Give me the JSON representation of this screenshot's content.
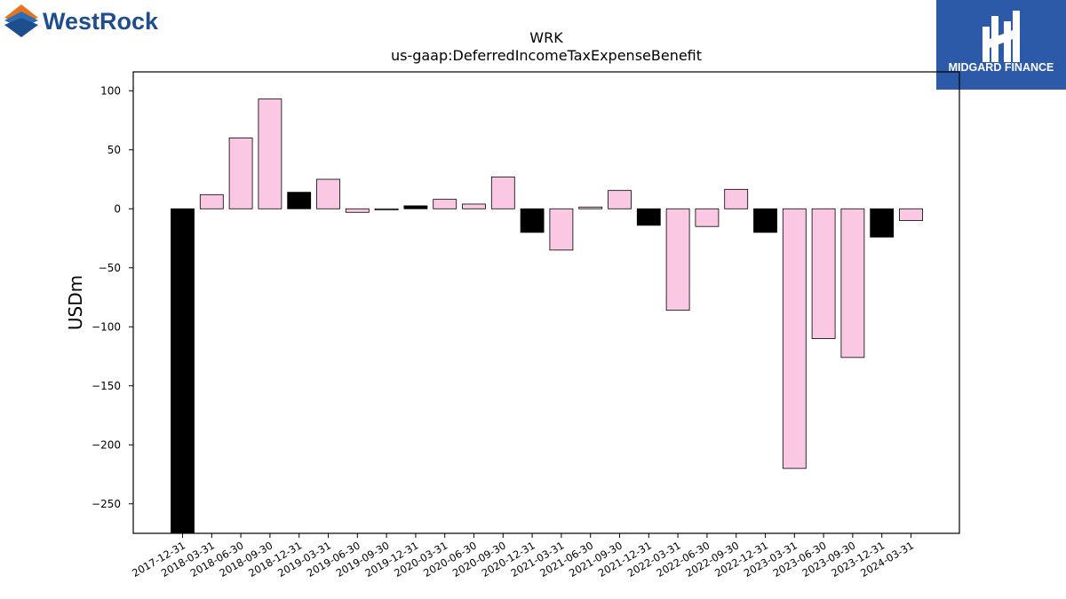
{
  "logos": {
    "left": {
      "text": "WestRock",
      "colors": {
        "text": "#1f4e8c",
        "orange": "#e8731e",
        "blue": "#2a6db5"
      }
    },
    "right": {
      "text": "MIDGARD FINANCE",
      "background": "#2d5aa8"
    }
  },
  "chart_data": {
    "type": "bar",
    "title": "WRK",
    "subtitle": "us-gaap:DeferredIncomeTaxExpenseBenefit",
    "xlabel": "",
    "ylabel": "USDm",
    "ylim": [
      -275,
      116
    ],
    "yticks": [
      100,
      50,
      0,
      -50,
      -100,
      -150,
      -200,
      -250
    ],
    "ytick_labels": [
      "100",
      "50",
      "0",
      "−50",
      "−100",
      "−150",
      "−200",
      "−250"
    ],
    "grid": false,
    "legend": "none",
    "colors": {
      "q4": "#000000",
      "other": "#fbc8e3",
      "edge": "#000000"
    },
    "categories": [
      "2017-12-31",
      "2018-03-31",
      "2018-06-30",
      "2018-09-30",
      "2018-12-31",
      "2019-03-31",
      "2019-06-30",
      "2019-09-30",
      "2019-12-31",
      "2020-03-31",
      "2020-06-30",
      "2020-09-30",
      "2020-12-31",
      "2021-03-31",
      "2021-06-30",
      "2021-09-30",
      "2021-12-31",
      "2022-03-31",
      "2022-06-30",
      "2022-09-30",
      "2022-12-31",
      "2023-03-31",
      "2023-06-30",
      "2023-09-30",
      "2023-12-31",
      "2024-03-31"
    ],
    "values": [
      -283,
      12,
      60,
      93,
      14,
      25,
      -3,
      -1,
      2.5,
      8,
      4,
      27,
      -20,
      -35,
      1.5,
      15.5,
      -14,
      -86,
      -15,
      16.5,
      -20,
      -220,
      -110,
      -126,
      -24,
      -10
    ],
    "highlight": [
      true,
      false,
      false,
      false,
      true,
      false,
      false,
      false,
      true,
      false,
      false,
      false,
      true,
      false,
      false,
      false,
      true,
      false,
      false,
      false,
      true,
      false,
      false,
      false,
      true,
      false
    ]
  }
}
